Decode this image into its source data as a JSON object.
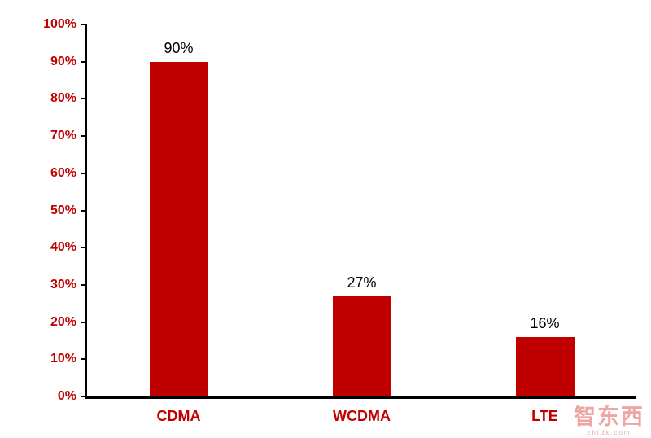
{
  "chart_data": {
    "type": "bar",
    "categories": [
      "CDMA",
      "WCDMA",
      "LTE"
    ],
    "values": [
      90,
      27,
      16
    ],
    "value_labels": [
      "90%",
      "27%",
      "16%"
    ],
    "title": "",
    "xlabel": "",
    "ylabel": "",
    "ylim": [
      0,
      100
    ],
    "ytick_step": 10,
    "ytick_labels": [
      "0%",
      "10%",
      "20%",
      "30%",
      "40%",
      "50%",
      "60%",
      "70%",
      "80%",
      "90%",
      "100%"
    ],
    "bar_color": "#C00000",
    "axis_label_color": "#C00000",
    "data_label_color": "#000000",
    "grid": false,
    "legend": false
  },
  "watermark": {
    "text": "智东西",
    "subtext": "zhidx.com"
  }
}
